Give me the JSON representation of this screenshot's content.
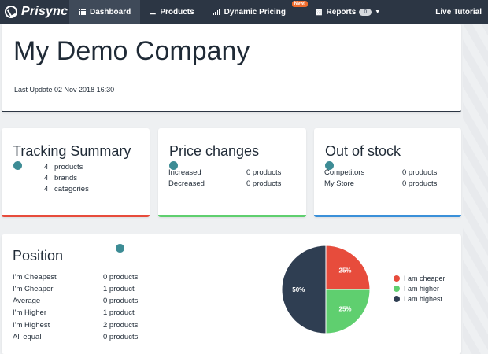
{
  "nav": {
    "brand": "Prisync",
    "items": [
      {
        "label": "Dashboard",
        "icon": "grid-icon",
        "active": true
      },
      {
        "label": "Products",
        "icon": "tags-icon"
      },
      {
        "label": "Dynamic Pricing",
        "icon": "bar-signal-icon",
        "badge": "New!"
      },
      {
        "label": "Reports",
        "icon": "bar-chart-icon",
        "count": "0"
      }
    ],
    "right": "Live Tutorial"
  },
  "header": {
    "company": "My Demo Company",
    "last_update": "Last Update 02 Nov 2018 16:30"
  },
  "tracking": {
    "title": "Tracking Summary",
    "rows": [
      {
        "value": "4",
        "label": "products"
      },
      {
        "value": "4",
        "label": "brands"
      },
      {
        "value": "4",
        "label": "categories"
      }
    ]
  },
  "price_changes": {
    "title": "Price changes",
    "rows": [
      {
        "label": "Increased",
        "value": "0 products"
      },
      {
        "label": "Decreased",
        "value": "0 products"
      }
    ]
  },
  "out_of_stock": {
    "title": "Out of stock",
    "rows": [
      {
        "label": "Competitors",
        "value": "0 products"
      },
      {
        "label": "My Store",
        "value": "0 products"
      }
    ]
  },
  "position": {
    "title": "Position",
    "rows": [
      {
        "label": "I'm Cheapest",
        "value": "0 products"
      },
      {
        "label": "I'm Cheaper",
        "value": "1 product"
      },
      {
        "label": "Average",
        "value": "0 products"
      },
      {
        "label": "I'm Higher",
        "value": "1 product"
      },
      {
        "label": "I'm Highest",
        "value": "2 products"
      },
      {
        "label": "All equal",
        "value": "0 products"
      }
    ]
  },
  "colors": {
    "navbar": "#2c3644",
    "cheaper": "#e74c3c",
    "higher": "#5fcf6f",
    "highest": "#2f3e52",
    "dot": "#3d8c95"
  },
  "chart_data": {
    "type": "pie",
    "series": [
      {
        "name": "I am cheaper",
        "value": 25,
        "label": "25%",
        "color": "#e74c3c"
      },
      {
        "name": "I am higher",
        "value": 25,
        "label": "25%",
        "color": "#5fcf6f"
      },
      {
        "name": "I am highest",
        "value": 50,
        "label": "50%",
        "color": "#2f3e52"
      }
    ],
    "legend": "right"
  }
}
